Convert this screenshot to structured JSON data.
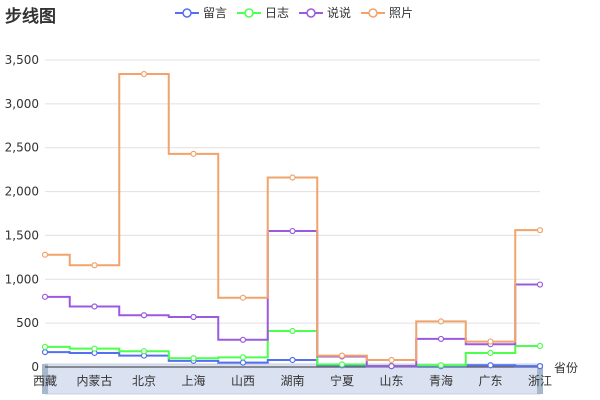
{
  "chart_data": {
    "type": "line",
    "step": true,
    "title": "步线图",
    "xlabel": "省份",
    "ylabel": "",
    "categories": [
      "西藏",
      "内蒙古",
      "北京",
      "上海",
      "山西",
      "湖南",
      "宁夏",
      "山东",
      "青海",
      "广东",
      "浙江"
    ],
    "ylim": [
      0,
      3500
    ],
    "yticks": [
      0,
      500,
      1000,
      1500,
      2000,
      2500,
      3000,
      3500
    ],
    "ytick_labels": [
      "0",
      "500",
      "1,000",
      "1,500",
      "2,000",
      "2,500",
      "3,000",
      "3,500"
    ],
    "grid": true,
    "legend": "top-center",
    "has_datazoom_slider": true,
    "series": [
      {
        "name": "留言",
        "color": "#5470f0",
        "values": [
          170,
          160,
          130,
          70,
          50,
          80,
          20,
          10,
          10,
          20,
          10
        ]
      },
      {
        "name": "日志",
        "color": "#4cff4c",
        "values": [
          230,
          210,
          180,
          100,
          110,
          410,
          30,
          10,
          20,
          160,
          240
        ]
      },
      {
        "name": "说说",
        "color": "#9b59e0",
        "values": [
          800,
          690,
          590,
          570,
          310,
          1550,
          120,
          10,
          320,
          260,
          940
        ]
      },
      {
        "name": "照片",
        "color": "#f2a36b",
        "values": [
          1280,
          1160,
          3340,
          2430,
          790,
          2160,
          130,
          80,
          520,
          290,
          1560
        ]
      }
    ]
  }
}
